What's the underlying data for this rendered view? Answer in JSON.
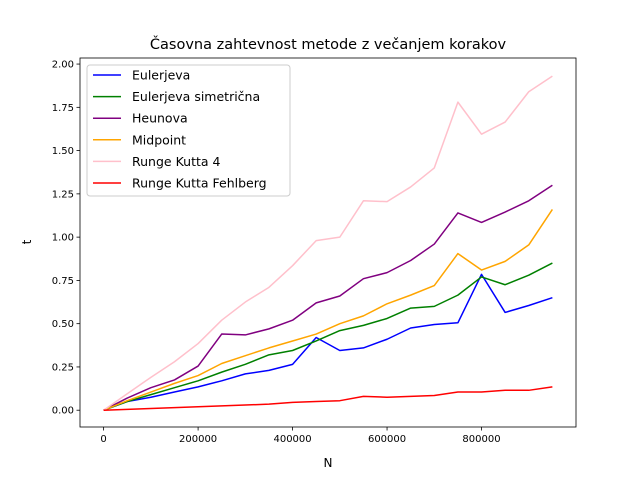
{
  "chart_data": {
    "type": "line",
    "title": "Časovna zahtevnost metode z večanjem korakov",
    "xlabel": "N",
    "ylabel": "t",
    "xlim": [
      -50000,
      1000000
    ],
    "ylim": [
      -0.097,
      2.035
    ],
    "xticks": [
      0,
      200000,
      400000,
      600000,
      800000
    ],
    "xtick_labels": [
      "0",
      "200000",
      "400000",
      "600000",
      "800000"
    ],
    "yticks": [
      0.0,
      0.25,
      0.5,
      0.75,
      1.0,
      1.25,
      1.5,
      1.75,
      2.0
    ],
    "ytick_labels": [
      "0.00",
      "0.25",
      "0.50",
      "0.75",
      "1.00",
      "1.25",
      "1.50",
      "1.75",
      "2.00"
    ],
    "grid": false,
    "legend_position": "upper-left",
    "x": [
      0,
      50000,
      100000,
      150000,
      200000,
      250000,
      300000,
      350000,
      400000,
      450000,
      500000,
      550000,
      600000,
      650000,
      700000,
      750000,
      800000,
      850000,
      900000,
      950000
    ],
    "series": [
      {
        "name": "Eulerjeva",
        "color": "#0000ff",
        "values": [
          0.0,
          0.05,
          0.075,
          0.105,
          0.135,
          0.17,
          0.21,
          0.23,
          0.265,
          0.42,
          0.345,
          0.36,
          0.41,
          0.475,
          0.495,
          0.505,
          0.785,
          0.565,
          0.605,
          0.65
        ]
      },
      {
        "name": "Eulerjeva simetrična",
        "color": "#008000",
        "values": [
          0.0,
          0.05,
          0.09,
          0.13,
          0.17,
          0.22,
          0.265,
          0.32,
          0.345,
          0.4,
          0.46,
          0.49,
          0.53,
          0.59,
          0.6,
          0.665,
          0.77,
          0.725,
          0.78,
          0.85
        ]
      },
      {
        "name": "Heunova",
        "color": "#800080",
        "values": [
          0.0,
          0.07,
          0.13,
          0.175,
          0.255,
          0.44,
          0.435,
          0.47,
          0.52,
          0.62,
          0.66,
          0.76,
          0.795,
          0.865,
          0.96,
          1.14,
          1.085,
          1.145,
          1.21,
          1.3
        ]
      },
      {
        "name": "Midpoint",
        "color": "#ffa500",
        "values": [
          0.0,
          0.055,
          0.105,
          0.155,
          0.2,
          0.27,
          0.315,
          0.36,
          0.4,
          0.44,
          0.5,
          0.545,
          0.615,
          0.665,
          0.72,
          0.905,
          0.81,
          0.86,
          0.955,
          1.16
        ]
      },
      {
        "name": "Runge Kutta 4",
        "color": "#ffc0cb",
        "values": [
          0.0,
          0.095,
          0.19,
          0.28,
          0.385,
          0.52,
          0.625,
          0.71,
          0.835,
          0.98,
          1.0,
          1.21,
          1.205,
          1.29,
          1.4,
          1.78,
          1.595,
          1.665,
          1.84,
          1.93
        ]
      },
      {
        "name": "Runge Kutta Fehlberg",
        "color": "#ff0000",
        "values": [
          0.0,
          0.005,
          0.01,
          0.015,
          0.02,
          0.025,
          0.03,
          0.035,
          0.045,
          0.05,
          0.055,
          0.08,
          0.075,
          0.08,
          0.085,
          0.105,
          0.105,
          0.115,
          0.115,
          0.135
        ]
      }
    ]
  }
}
